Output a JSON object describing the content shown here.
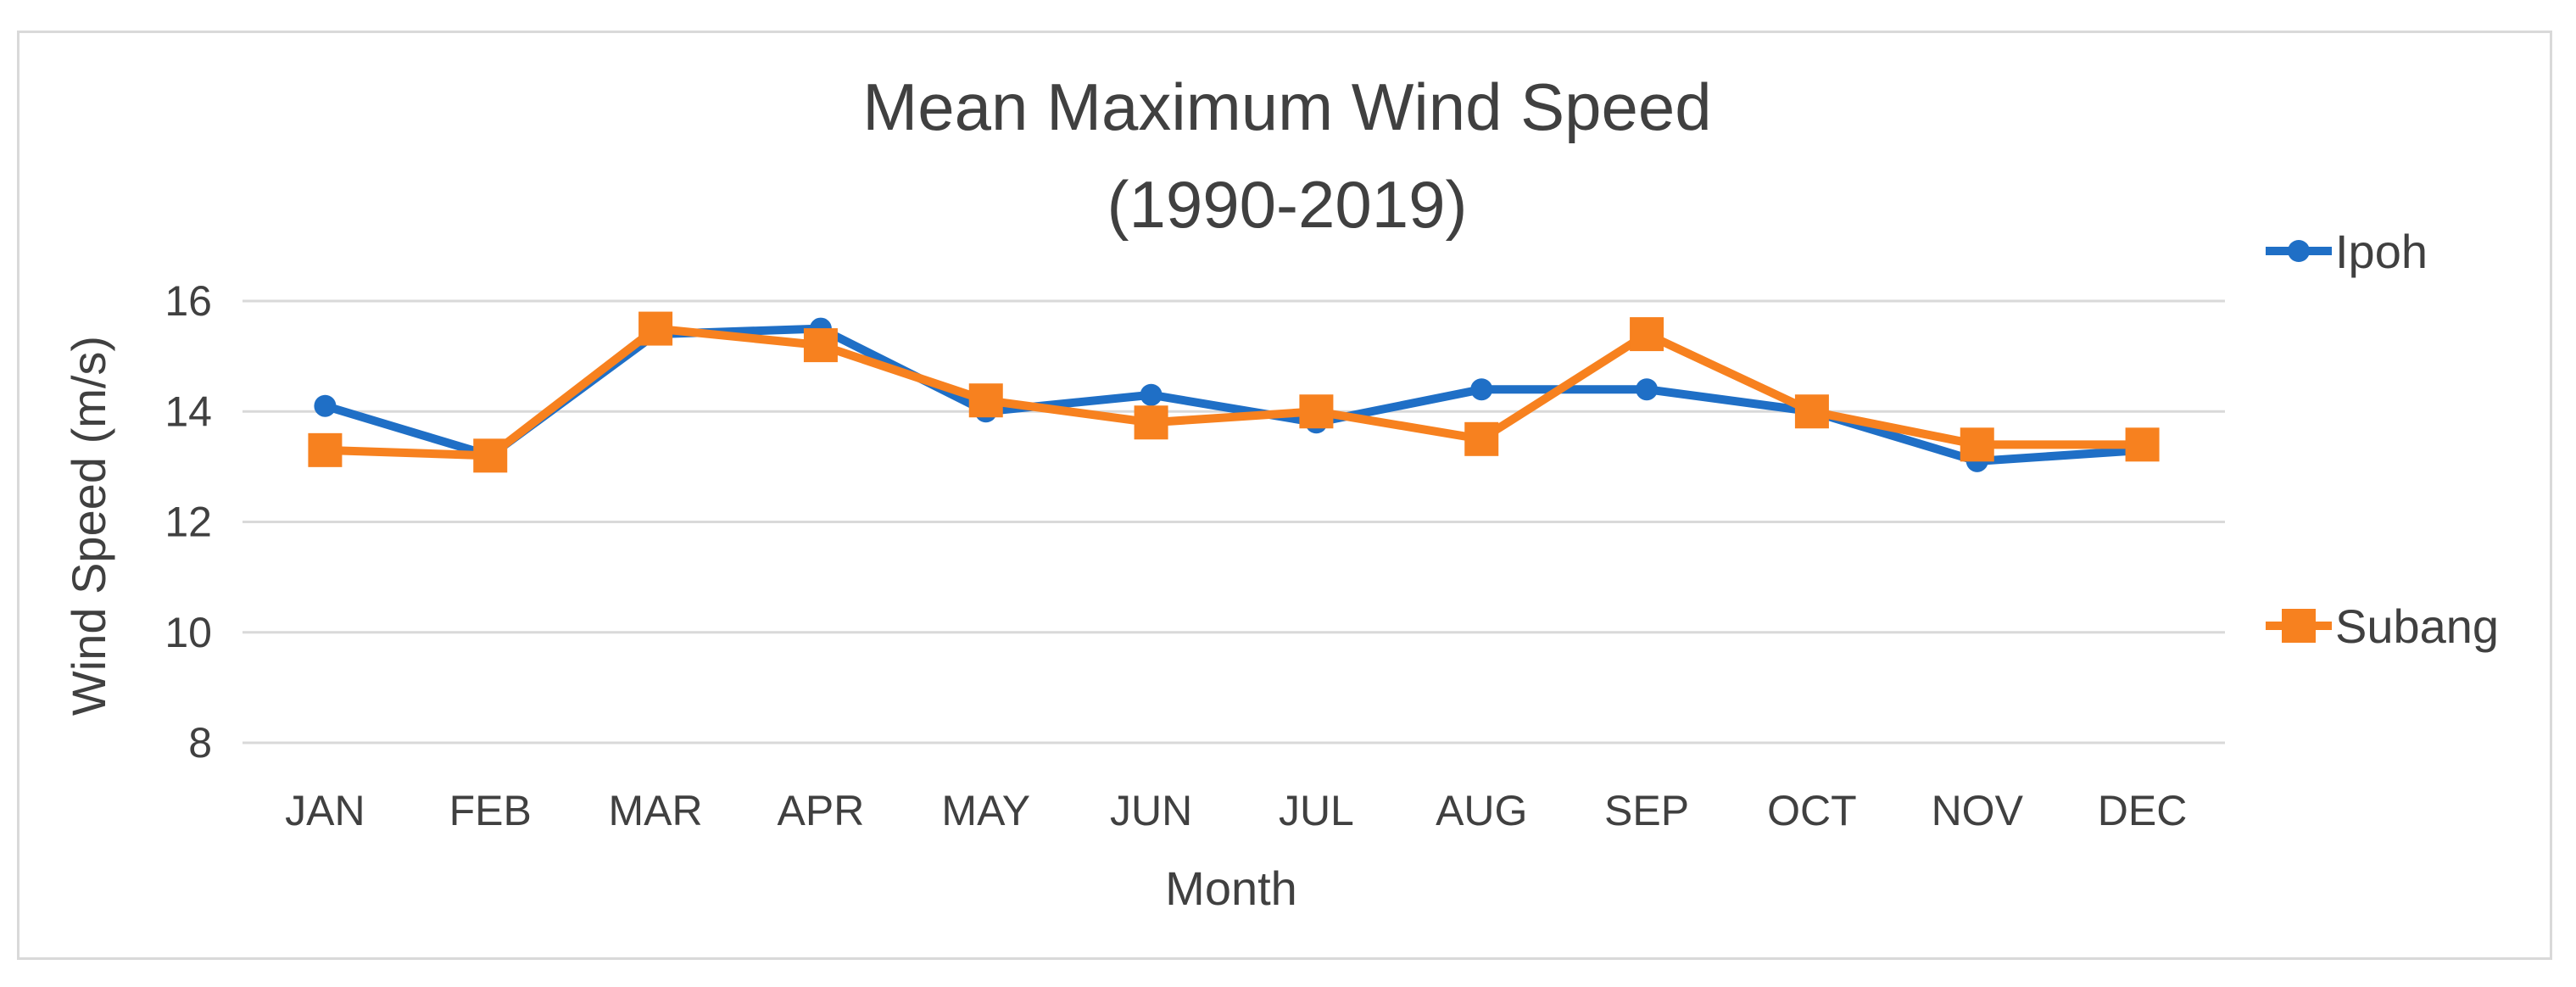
{
  "chart_data": {
    "type": "line",
    "title": [
      "Mean Maximum Wind Speed",
      "(1990-2019)"
    ],
    "xlabel": "Month",
    "ylabel": "Wind Speed (m/s)",
    "categories": [
      "JAN",
      "FEB",
      "MAR",
      "APR",
      "MAY",
      "JUN",
      "JUL",
      "AUG",
      "SEP",
      "OCT",
      "NOV",
      "DEC"
    ],
    "ylim": [
      8,
      16
    ],
    "yticks": [
      "8",
      "10",
      "12",
      "14",
      "16"
    ],
    "grid": true,
    "legend_position": "right",
    "series": [
      {
        "name": "Ipoh",
        "color": "#1f6fc6",
        "marker": "circle",
        "values": [
          14.1,
          13.2,
          15.4,
          15.5,
          14.0,
          14.3,
          13.8,
          14.4,
          14.4,
          14.0,
          13.1,
          13.3
        ]
      },
      {
        "name": "Subang",
        "color": "#f7811f",
        "marker": "square",
        "values": [
          13.3,
          13.2,
          15.5,
          15.2,
          14.2,
          13.8,
          14.0,
          13.5,
          15.4,
          14.0,
          13.4,
          13.4
        ]
      }
    ]
  }
}
